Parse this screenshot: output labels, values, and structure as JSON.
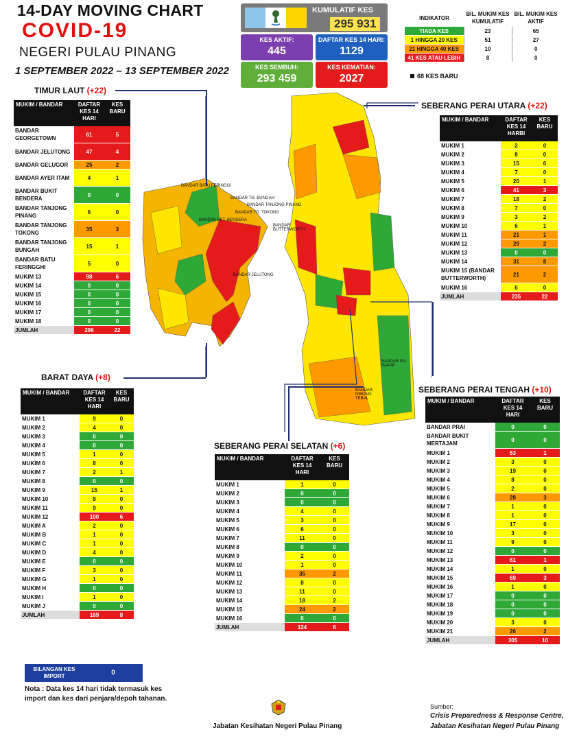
{
  "header": {
    "title": "14-DAY MOVING CHART",
    "covid": "COVID-19",
    "state": "NEGERI PULAU PINANG",
    "date": "1 SEPTEMBER 2022 – 13 SEPTEMBER 2022"
  },
  "summary": {
    "kumulatif_label": "KUMULATIF KES",
    "kumulatif": "295 931",
    "aktif_label": "KES AKTIF:",
    "aktif": "445",
    "daftar_label": "DAFTAR KES 14 HARI:",
    "daftar": "1129",
    "sembuh_label": "KES SEMBUH:",
    "sembuh": "293 459",
    "kematian_label": "KES KEMATIAN:",
    "kematian": "2027"
  },
  "indikator": {
    "h1": "INDIKATOR",
    "h2": "BIL. MUKIM KES KUMULATIF",
    "h3": "BIL. MUKIM KES AKTIF",
    "rows": [
      {
        "label": "TIADA KES",
        "kum": "23",
        "akt": "65",
        "color": "#2ea836"
      },
      {
        "label": "1 HINGGA 20 KES",
        "kum": "51",
        "akt": "27",
        "color": "#ffff00"
      },
      {
        "label": "21 HINGGA 40 KES",
        "kum": "10",
        "akt": "0",
        "color": "#ff9900"
      },
      {
        "label": "41 KES ATAU LEBIH",
        "kum": "8",
        "akt": "0",
        "color": "#e51b1b"
      }
    ],
    "baru": "68 KES BARU"
  },
  "districts": {
    "tl": {
      "name": "TIMUR LAUT",
      "plus": "(+22)",
      "h1": "MUKIM / BANDAR",
      "h2": "DAFTAR KES 14 HARI",
      "h3": "KES BARU",
      "rows": [
        [
          "BANDAR GEORGETOWN",
          "61",
          "5"
        ],
        [
          "BANDAR JELUTONG",
          "47",
          "4"
        ],
        [
          "BANDAR GELUGOR",
          "25",
          "2"
        ],
        [
          "BANDAR AYER ITAM",
          "4",
          "1"
        ],
        [
          "BANDAR BUKIT BENDERA",
          "0",
          "0"
        ],
        [
          "BANDAR TANJONG PINANG",
          "6",
          "0"
        ],
        [
          "BANDAR TANJONG TOKONG",
          "35",
          "3"
        ],
        [
          "BANDAR TANJONG BUNGAH",
          "15",
          "1"
        ],
        [
          "BANDAR BATU FERINGGHI",
          "5",
          "0"
        ],
        [
          "MUKIM 13",
          "98",
          "6"
        ],
        [
          "MUKIM 14",
          "0",
          "0"
        ],
        [
          "MUKIM 15",
          "0",
          "0"
        ],
        [
          "MUKIM 16",
          "0",
          "0"
        ],
        [
          "MUKIM 17",
          "0",
          "0"
        ],
        [
          "MUKIM 18",
          "0",
          "0"
        ]
      ],
      "total": [
        "JUMLAH",
        "296",
        "22"
      ]
    },
    "bd": {
      "name": "BARAT DAYA",
      "plus": "(+8)",
      "h1": "MUKIM / BANDAR",
      "h2": "DAFTAR KES 14 HARI",
      "h3": "KES BARU",
      "rows": [
        [
          "MUKIM 1",
          "9",
          "0"
        ],
        [
          "MUKIM 2",
          "4",
          "0"
        ],
        [
          "MUKIM 3",
          "0",
          "0"
        ],
        [
          "MUKIM 4",
          "0",
          "0"
        ],
        [
          "MUKIM 5",
          "1",
          "0"
        ],
        [
          "MUKIM 6",
          "8",
          "0"
        ],
        [
          "MUKIM 7",
          "2",
          "1"
        ],
        [
          "MUKIM 8",
          "0",
          "0"
        ],
        [
          "MUKIM 9",
          "15",
          "1"
        ],
        [
          "MUKIM 10",
          "8",
          "0"
        ],
        [
          "MUKIM 11",
          "9",
          "0"
        ],
        [
          "MUKIM 12",
          "100",
          "6"
        ],
        [
          "MUKIM A",
          "2",
          "0"
        ],
        [
          "MUKIM B",
          "1",
          "0"
        ],
        [
          "MUKIM C",
          "1",
          "0"
        ],
        [
          "MUKIM D",
          "4",
          "0"
        ],
        [
          "MUKIM E",
          "0",
          "0"
        ],
        [
          "MUKIM F",
          "3",
          "0"
        ],
        [
          "MUKIM G",
          "1",
          "0"
        ],
        [
          "MUKIM H",
          "0",
          "0"
        ],
        [
          "MUKIM I",
          "1",
          "0"
        ],
        [
          "MUKIM J",
          "0",
          "0"
        ]
      ],
      "total": [
        "JUMLAH",
        "169",
        "8"
      ]
    },
    "spu": {
      "name": "SEBERANG PERAI UTARA",
      "plus": "(+22)",
      "h1": "MUKIM / BANDAR",
      "h2": "DAFTAR KES 14 HARBI",
      "h3": "KES BARU",
      "rows": [
        [
          "MUKIM 1",
          "2",
          "0"
        ],
        [
          "MUKIM 2",
          "8",
          "0"
        ],
        [
          "MUKIM 3",
          "15",
          "0"
        ],
        [
          "MUKIM 4",
          "7",
          "0"
        ],
        [
          "MUKIM 5",
          "20",
          "1"
        ],
        [
          "MUKIM 6",
          "41",
          "3"
        ],
        [
          "MUKIM 7",
          "18",
          "2"
        ],
        [
          "MUKIM 8",
          "7",
          "0"
        ],
        [
          "MUKIM 9",
          "3",
          "2"
        ],
        [
          "MUKIM 10",
          "6",
          "1"
        ],
        [
          "MUKIM 11",
          "21",
          "1"
        ],
        [
          "MUKIM 12",
          "29",
          "2"
        ],
        [
          "MUKIM 13",
          "0",
          "0"
        ],
        [
          "MUKIM 14",
          "31",
          "8"
        ],
        [
          "MUKIM 15 (BANDAR BUTTERWORTH)",
          "21",
          "2"
        ],
        [
          "MUKIM 16",
          "6",
          "0"
        ]
      ],
      "total": [
        "JUMLAH",
        "235",
        "22"
      ]
    },
    "sps": {
      "name": "SEBERANG PERAI SELATAN",
      "plus": "(+6)",
      "h1": "MUKIM / BANDAR",
      "h2": "DAFTAR KES 14 HARI",
      "h3": "KES BARU",
      "rows": [
        [
          "MUKIM 1",
          "1",
          "0"
        ],
        [
          "MUKIM 2",
          "0",
          "0"
        ],
        [
          "MUKIM 3",
          "0",
          "0"
        ],
        [
          "MUKIM 4",
          "4",
          "0"
        ],
        [
          "MUKIM 5",
          "3",
          "0"
        ],
        [
          "MUKIM 6",
          "6",
          "0"
        ],
        [
          "MUKIM 7",
          "11",
          "0"
        ],
        [
          "MUKIM 8",
          "0",
          "0"
        ],
        [
          "MUKIM 9",
          "2",
          "0"
        ],
        [
          "MUKIM 10",
          "1",
          "0"
        ],
        [
          "MUKIM 11",
          "35",
          "2"
        ],
        [
          "MUKIM 12",
          "8",
          "0"
        ],
        [
          "MUKIM 13",
          "11",
          "0"
        ],
        [
          "MUKIM 14",
          "18",
          "2"
        ],
        [
          "MUKIM 15",
          "24",
          "2"
        ],
        [
          "MUKIM 16",
          "0",
          "0"
        ]
      ],
      "total": [
        "JUMLAH",
        "124",
        "6"
      ]
    },
    "spt": {
      "name": "SEBERANG PERAI TENGAH",
      "plus": "(+10)",
      "h1": "MUKIM / BANDAR",
      "h2": "DAFTAR KES 14 HARI",
      "h3": "KES BARU",
      "rows": [
        [
          "BANDAR PRAI",
          "0",
          "0"
        ],
        [
          "BANDAR BUKIT MERTAJAM",
          "0",
          "0"
        ],
        [
          "MUKIM 1",
          "53",
          "1"
        ],
        [
          "MUKIM 2",
          "3",
          "0"
        ],
        [
          "MUKIM 3",
          "19",
          "0"
        ],
        [
          "MUKIM 4",
          "8",
          "0"
        ],
        [
          "MUKIM 5",
          "2",
          "0"
        ],
        [
          "MUKIM 6",
          "28",
          "3"
        ],
        [
          "MUKIM 7",
          "1",
          "0"
        ],
        [
          "MUKIM 8",
          "1",
          "0"
        ],
        [
          "MUKIM 9",
          "17",
          "0"
        ],
        [
          "MUKIM 10",
          "3",
          "0"
        ],
        [
          "MUKIM 11",
          "9",
          "0"
        ],
        [
          "MUKIM 12",
          "0",
          "0"
        ],
        [
          "MUKIM 13",
          "61",
          "1"
        ],
        [
          "MUKIM 14",
          "1",
          "0"
        ],
        [
          "MUKIM 15",
          "69",
          "3"
        ],
        [
          "MUKIM 16",
          "1",
          "0"
        ],
        [
          "MUKIM 17",
          "0",
          "0"
        ],
        [
          "MUKIM 18",
          "0",
          "0"
        ],
        [
          "MUKIM 19",
          "0",
          "0"
        ],
        [
          "MUKIM 20",
          "3",
          "0"
        ],
        [
          "MUKIM 21",
          "26",
          "2"
        ]
      ],
      "total": [
        "JUMLAH",
        "305",
        "10"
      ]
    }
  },
  "map_labels": [
    "BANDAR BATU FERINGGI",
    "BANDAR TG. BUNGAH",
    "BANDAR TANJONG PINANG",
    "BANDAR TG. TOKONG",
    "BANDAR BKT. BENDERA",
    "BANDAR JELUTONG",
    "BANDAR BUTTERWORTH",
    "BANDAR SG. BAKAP",
    "BANDAR NIBONG TEBAL"
  ],
  "import": {
    "label": "BILANGAN KES IMPORT",
    "value": "0"
  },
  "note": "Nota : Data kes 14 hari tidak termasuk kes import dan kes dari penjara/depoh tahanan.",
  "footer": {
    "dept": "Jabatan Kesihatan Negeri Pulau Pinang",
    "sumber": "Sumber:",
    "src1": "Crisis Preparedness & Response Centre,",
    "src2": "Jabatan Kesihatan Negeri Pulau Pinang"
  }
}
